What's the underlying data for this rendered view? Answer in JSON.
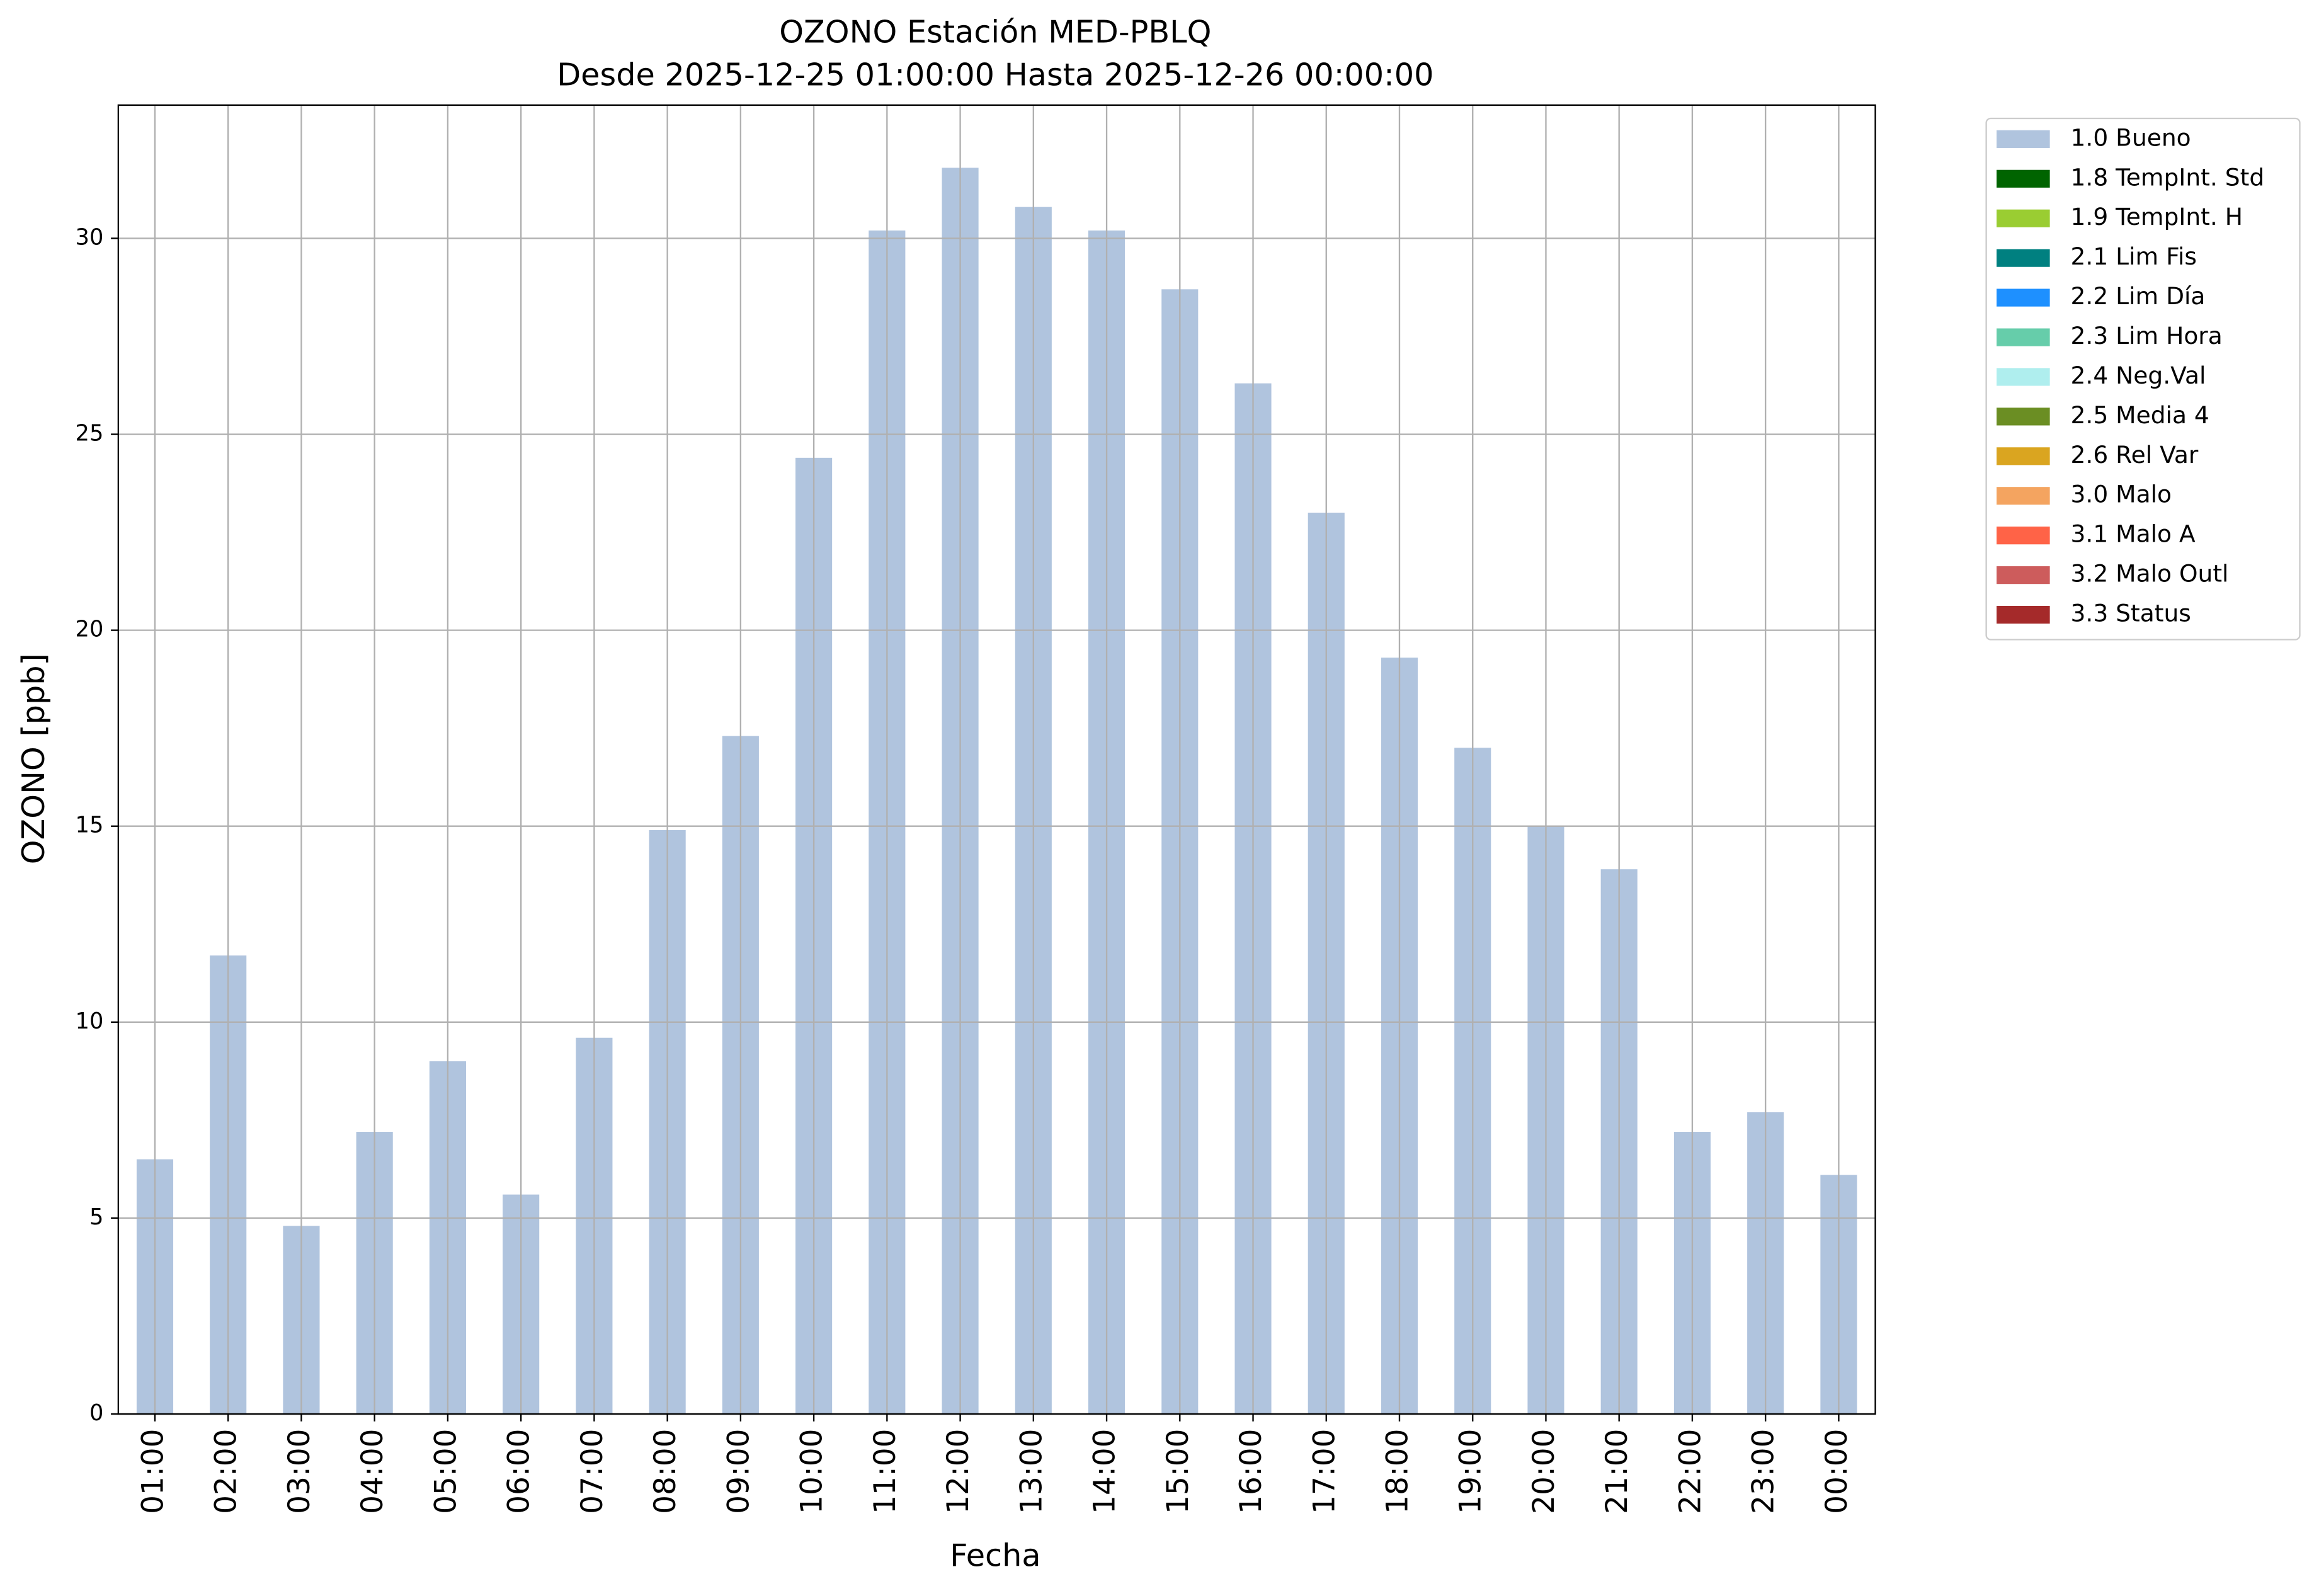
{
  "chart_data": {
    "type": "bar",
    "title": "OZONO Estación MED-PBLQ",
    "subtitle": "Desde 2025-12-25 01:00:00 Hasta 2025-12-26 00:00:00",
    "x_label": "Fecha",
    "y_label": "OZONO [ppb]",
    "categories": [
      "01:00",
      "02:00",
      "03:00",
      "04:00",
      "05:00",
      "06:00",
      "07:00",
      "08:00",
      "09:00",
      "10:00",
      "11:00",
      "12:00",
      "13:00",
      "14:00",
      "15:00",
      "16:00",
      "17:00",
      "18:00",
      "19:00",
      "20:00",
      "21:00",
      "22:00",
      "23:00",
      "00:00"
    ],
    "series": [
      {
        "name": "1.0 Bueno",
        "color": "#b0c4de",
        "values": [
          6.5,
          11.7,
          4.8,
          7.2,
          9.0,
          5.6,
          9.6,
          14.9,
          17.3,
          24.4,
          30.2,
          31.8,
          30.8,
          30.2,
          28.7,
          26.3,
          23.0,
          19.3,
          17.0,
          15.0,
          13.9,
          7.2,
          7.7,
          6.1
        ]
      }
    ],
    "legend": [
      {
        "name": "1.0 Bueno",
        "color": "#b0c4de"
      },
      {
        "name": "1.8 TempInt. Std",
        "color": "#006400"
      },
      {
        "name": "1.9 TempInt. H",
        "color": "#9acd32"
      },
      {
        "name": "2.1 Lim Fis",
        "color": "#008080"
      },
      {
        "name": "2.2 Lim Día",
        "color": "#1e90ff"
      },
      {
        "name": "2.3 Lim Hora",
        "color": "#66cdaa"
      },
      {
        "name": "2.4 Neg.Val",
        "color": "#afeeee"
      },
      {
        "name": "2.5 Media 4",
        "color": "#6b8e23"
      },
      {
        "name": "2.6 Rel Var",
        "color": "#daa520"
      },
      {
        "name": "3.0 Malo",
        "color": "#f4a460"
      },
      {
        "name": "3.1 Malo A",
        "color": "#ff6347"
      },
      {
        "name": "3.2 Malo Outl",
        "color": "#cd5c5c"
      },
      {
        "name": "3.3 Status",
        "color": "#a52a2a"
      }
    ],
    "legend_position": "outside-right",
    "ylim": [
      0,
      33.4
    ],
    "yticks": [
      0,
      5,
      10,
      15,
      20,
      25,
      30
    ],
    "grid": true
  }
}
